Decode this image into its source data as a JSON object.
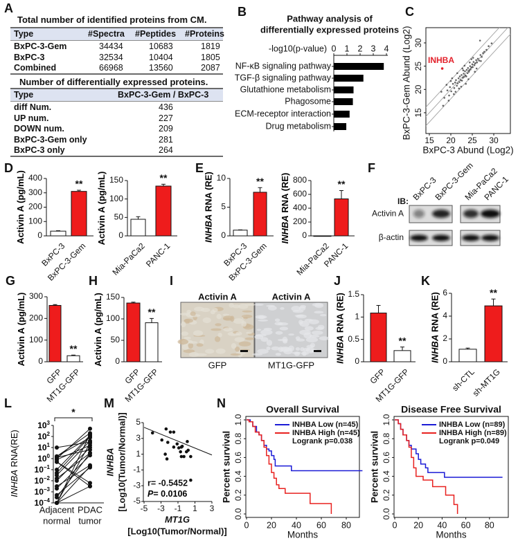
{
  "panels": {
    "A": "A",
    "B": "B",
    "C": "C",
    "D": "D",
    "E": "E",
    "F": "F",
    "G": "G",
    "H": "H",
    "I": "I",
    "J": "J",
    "K": "K",
    "L": "L",
    "M": "M",
    "N": "N"
  },
  "table_total": {
    "title": "Total number of identified proteins from CM.",
    "headers": [
      "Type",
      "#Spectra",
      "#Peptides",
      "#Proteins"
    ],
    "rows": [
      [
        "BxPC-3-Gem",
        "34434",
        "10683",
        "1819"
      ],
      [
        "BxPC-3",
        "32534",
        "10404",
        "1805"
      ],
      [
        "Combined",
        "66968",
        "13560",
        "2087"
      ]
    ]
  },
  "table_diff": {
    "title": "Number of differentially expressed proteins.",
    "headers": [
      "Type",
      "BxPC-3-Gem / BxPC-3"
    ],
    "rows": [
      [
        "diff Num.",
        "436"
      ],
      [
        "UP num.",
        "227"
      ],
      [
        "DOWN num.",
        "209"
      ],
      [
        "BxPC-3-Gem only",
        "281"
      ],
      [
        "BxPC-3 only",
        "264"
      ]
    ]
  },
  "blot": {
    "ib_label": "IB:",
    "lanes": [
      "BxPC-3",
      "BxPC-3-Gem",
      "Mia-PaCa2",
      "PANC-1"
    ],
    "rows": [
      "Activin A",
      "β-actin"
    ]
  },
  "ihc": {
    "titles": [
      "Activin A",
      "Activin A"
    ],
    "labels": [
      "GFP",
      "MT1G-GFP"
    ]
  },
  "colors": {
    "red": "#ee1c1c",
    "white": "#ffffff",
    "blue": "#1a1ad6",
    "km_red": "#e8201e",
    "inhba": "#e3202a"
  },
  "chart_data": [
    {
      "id": "B",
      "type": "bar",
      "orientation": "horizontal",
      "title_lines": [
        "Pathway analysis of",
        "differentially expressed proteins"
      ],
      "xlabel": "-log10(p-value)",
      "categories": [
        "NF-κB signaling pathway",
        "TGF-β signaling pathway",
        "Glutathione metabolism",
        "Phagosome",
        "ECM-receptor interaction",
        "Drug metabolism"
      ],
      "values": [
        3.8,
        2.25,
        1.5,
        1.45,
        1.2,
        0.95
      ],
      "xlim": [
        0,
        4
      ],
      "xticks": [
        0,
        1,
        2,
        3,
        4
      ]
    },
    {
      "id": "C",
      "type": "scatter",
      "xlabel": "BxPC-3  Abund (Log2)",
      "ylabel": "BxPC-3-Gem  Abund (Log2)",
      "xlim": [
        14.2,
        33.9
      ],
      "ylim": [
        14.5,
        33.3
      ],
      "xticks": [
        15,
        20,
        25,
        30
      ],
      "yticks": [
        15,
        20,
        25,
        30
      ],
      "reference_lines": "y = x and y = x ± 2",
      "highlight": {
        "label": "INHBA",
        "x": 18,
        "y": 24.5
      },
      "points": [
        [
          18.5,
          18.2
        ],
        [
          19.2,
          19.8
        ],
        [
          19.8,
          20.5
        ],
        [
          20.1,
          19.6
        ],
        [
          20.5,
          21.2
        ],
        [
          20.8,
          20.3
        ],
        [
          21,
          21.5
        ],
        [
          21.2,
          22
        ],
        [
          21.4,
          20.8
        ],
        [
          21.6,
          21.3
        ],
        [
          21.8,
          22.4
        ],
        [
          22,
          21.6
        ],
        [
          22.1,
          22.8
        ],
        [
          22.3,
          22
        ],
        [
          22.5,
          23.1
        ],
        [
          22.6,
          21.9
        ],
        [
          22.8,
          22.5
        ],
        [
          23,
          23.4
        ],
        [
          23.1,
          22.7
        ],
        [
          23.3,
          23.9
        ],
        [
          23.4,
          23
        ],
        [
          23.6,
          22.8
        ],
        [
          23.7,
          24.2
        ],
        [
          23.9,
          23.5
        ],
        [
          24,
          24.6
        ],
        [
          24.2,
          23.8
        ],
        [
          24.3,
          24.1
        ],
        [
          24.5,
          25
        ],
        [
          24.6,
          24.3
        ],
        [
          24.8,
          24.7
        ],
        [
          25,
          25.4
        ],
        [
          25.1,
          24.8
        ],
        [
          25.3,
          25.9
        ],
        [
          25.5,
          25.2
        ],
        [
          25.7,
          25.6
        ],
        [
          25.9,
          26.3
        ],
        [
          26.1,
          25.8
        ],
        [
          26.3,
          26.6
        ],
        [
          26.6,
          26.2
        ],
        [
          26.9,
          27.4
        ],
        [
          27.2,
          27
        ],
        [
          27.5,
          27.8
        ],
        [
          27.8,
          28.1
        ],
        [
          28.3,
          28.5
        ],
        [
          26.8,
          30.5
        ],
        [
          28.8,
          29.3
        ],
        [
          19.5,
          17.6
        ],
        [
          20.3,
          22.4
        ],
        [
          21.5,
          23.5
        ],
        [
          22.4,
          20.6
        ],
        [
          23.2,
          25.1
        ],
        [
          24.1,
          22.2
        ],
        [
          24.8,
          26.5
        ],
        [
          25.6,
          23.8
        ],
        [
          20.7,
          19
        ],
        [
          22.9,
          24.1
        ],
        [
          19,
          21
        ],
        [
          17.8,
          19.5
        ],
        [
          23.5,
          21.2
        ],
        [
          26,
          24.5
        ],
        [
          21.9,
          20.2
        ],
        [
          22.7,
          24.5
        ],
        [
          24.4,
          25.8
        ],
        [
          25.2,
          26.8
        ],
        [
          27,
          26.1
        ],
        [
          20,
          21.8
        ],
        [
          21.1,
          19.5
        ],
        [
          18.2,
          16.5
        ],
        [
          19.6,
          18.7
        ],
        [
          29.5,
          29.9
        ]
      ]
    },
    {
      "id": "D1",
      "type": "bar",
      "ylabel": "Activin A (pg/mL)",
      "categories": [
        "BxPC-3",
        "BxPC-3-Gem"
      ],
      "values": [
        33,
        310
      ],
      "errors": [
        3,
        8
      ],
      "bar_colors": [
        "#ffffff",
        "#ee1c1c"
      ],
      "significance": [
        "",
        "**"
      ],
      "ylim": [
        0,
        400
      ],
      "yticks": [
        0,
        100,
        200,
        300,
        400
      ]
    },
    {
      "id": "D2",
      "type": "bar",
      "ylabel": "Activin A (pg/mL)",
      "categories": [
        "Mia-PaCa2",
        "PANC-1"
      ],
      "values": [
        45,
        135
      ],
      "errors": [
        7,
        5
      ],
      "bar_colors": [
        "#ffffff",
        "#ee1c1c"
      ],
      "significance": [
        "",
        "**"
      ],
      "ylim": [
        0,
        150
      ],
      "yticks": [
        0,
        50,
        100,
        150
      ]
    },
    {
      "id": "E1",
      "type": "bar",
      "ylabel_italic": "INHBA",
      "ylabel": " RNA (RE)",
      "categories": [
        "BxPC-3",
        "BxPC-3-Gem"
      ],
      "values": [
        1,
        7.6
      ],
      "errors": [
        0.05,
        0.8
      ],
      "bar_colors": [
        "#ffffff",
        "#ee1c1c"
      ],
      "significance": [
        "",
        "**"
      ],
      "ylim": [
        0,
        10
      ],
      "yticks": [
        0,
        5,
        10
      ]
    },
    {
      "id": "E2",
      "type": "bar",
      "ylabel_italic": "INHBA",
      "ylabel": " RNA (RE)",
      "categories": [
        "Mia-PaCa2",
        "PANC-1"
      ],
      "values": [
        1,
        535
      ],
      "errors": [
        0,
        120
      ],
      "bar_colors": [
        "#ffffff",
        "#ee1c1c"
      ],
      "significance": [
        "",
        "**"
      ],
      "ylim": [
        0,
        800
      ],
      "yticks": [
        0,
        200,
        400,
        600,
        800
      ]
    },
    {
      "id": "G",
      "type": "bar",
      "ylabel": "Activin A (pg/mL)",
      "categories": [
        "GFP",
        "MT1G-GFP"
      ],
      "values": [
        260,
        28
      ],
      "errors": [
        4,
        3
      ],
      "bar_colors": [
        "#ee1c1c",
        "#ffffff"
      ],
      "significance": [
        "",
        "**"
      ],
      "ylim": [
        0,
        300
      ],
      "yticks": [
        0,
        100,
        200,
        300
      ]
    },
    {
      "id": "H",
      "type": "bar",
      "ylabel": "Activin A (pg/mL)",
      "categories": [
        "GFP",
        "MT1G-GFP"
      ],
      "values": [
        137,
        91
      ],
      "errors": [
        2,
        10
      ],
      "bar_colors": [
        "#ee1c1c",
        "#ffffff"
      ],
      "significance": [
        "",
        "**"
      ],
      "ylim": [
        0,
        150
      ],
      "yticks": [
        0,
        50,
        100,
        150
      ]
    },
    {
      "id": "J",
      "type": "bar",
      "ylabel_italic": "INHBA",
      "ylabel": " RNA (RE)",
      "categories": [
        "GFP",
        "MT1G-GFP"
      ],
      "values": [
        1.09,
        0.25
      ],
      "errors": [
        0.17,
        0.08
      ],
      "bar_colors": [
        "#ee1c1c",
        "#ffffff"
      ],
      "significance": [
        "",
        "**"
      ],
      "ylim": [
        0,
        1.5
      ],
      "yticks": [
        0,
        0.5,
        1,
        1.5
      ]
    },
    {
      "id": "K",
      "type": "bar",
      "ylabel_italic": "INHBA",
      "ylabel": " RNA (RE)",
      "categories": [
        "sh-CTL",
        "sh-MT1G"
      ],
      "values": [
        1.1,
        4.9
      ],
      "errors": [
        0.1,
        0.6
      ],
      "bar_colors": [
        "#ffffff",
        "#ee1c1c"
      ],
      "significance": [
        "",
        "**"
      ],
      "ylim": [
        0,
        6
      ],
      "yticks": [
        0,
        2,
        4,
        6
      ]
    },
    {
      "id": "L",
      "type": "scatter",
      "subtype": "paired",
      "ylabel_italic": "INHBA",
      "ylabel": " RNA(RE)",
      "yscale": "log",
      "ylim": [
        0.0001,
        1000
      ],
      "ytick_exponents": [
        3,
        2,
        1,
        0,
        -1,
        -2,
        -3,
        -4
      ],
      "categories": [
        [
          "Adjacent",
          "normal"
        ],
        [
          "PDAC",
          "tumor"
        ]
      ],
      "significance": "*",
      "log10_adjacent": [
        1,
        0.2,
        0.2,
        0.1,
        0,
        -0.1,
        -0.3,
        -0.3,
        -1,
        -1.3,
        -1.5,
        -1.8,
        -2,
        -2.5,
        -2.7,
        -3.3,
        -3.5,
        -4,
        -4,
        -4,
        -4
      ],
      "log10_tumor": [
        1.5,
        2.3,
        1.9,
        0.8,
        2.7,
        1.2,
        -2.2,
        -2.5,
        2.1,
        2,
        1.6,
        0.5,
        1,
        -0.6,
        0.3,
        -0.8,
        0.5,
        2.2,
        1.4,
        -0.7,
        -2.5
      ]
    },
    {
      "id": "M",
      "type": "scatter",
      "xlabel_italic": "MT1G",
      "xlabel": "[Log10(Tumor/Normal)]",
      "ylabel_italic": "INHBA",
      "ylabel": "[Log10(Tumor/Normal)]",
      "xlim": [
        -5,
        3
      ],
      "ylim": [
        -5,
        5
      ],
      "xticks": [
        -5,
        -3,
        -1,
        1,
        3
      ],
      "yticks": [
        -5,
        -3,
        -1,
        1,
        3,
        5
      ],
      "r_text": "r= -0.5452",
      "p_label": "P",
      "p_text": "= 0.0106",
      "fit_line": [
        [
          -5,
          4.4
        ],
        [
          3,
          0.9
        ]
      ],
      "points": [
        [
          -4,
          3.7
        ],
        [
          -2.9,
          2.8
        ],
        [
          -2.4,
          4.2
        ],
        [
          -2.2,
          2.5
        ],
        [
          -1.9,
          3.8
        ],
        [
          -1.5,
          3.8
        ],
        [
          -1.5,
          1.9
        ],
        [
          -1.1,
          2.3
        ],
        [
          -0.7,
          1.3
        ],
        [
          -0.6,
          1.9
        ],
        [
          -0.5,
          2
        ],
        [
          -0.3,
          0.7
        ],
        [
          0,
          1.3
        ],
        [
          0.1,
          2.6
        ],
        [
          0.2,
          1.5
        ],
        [
          0.5,
          0.7
        ],
        [
          -0.6,
          0.7
        ],
        [
          -2.5,
          1
        ],
        [
          -2.3,
          0.4
        ],
        [
          0.5,
          -2.3
        ],
        [
          -0.9,
          1.8
        ]
      ]
    },
    {
      "id": "N1",
      "type": "line",
      "subtype": "kaplan-meier",
      "title": "Overall Survival",
      "xlabel": "Months",
      "ylabel": "Percent survival",
      "xlim": [
        0,
        95
      ],
      "ylim": [
        0,
        1
      ],
      "xticks": [
        0,
        20,
        40,
        60,
        80
      ],
      "yticks": [
        "0.0",
        "0.2",
        "0.4",
        "0.6",
        "0.8",
        "1.0"
      ],
      "legend": "top-right",
      "logrank": "Logrank p=0.038",
      "series": [
        {
          "name": "INHBA Low (n=45)",
          "color": "#1a1ad6",
          "steps": [
            [
              0,
              1
            ],
            [
              3,
              0.98
            ],
            [
              5,
              0.93
            ],
            [
              8,
              0.87
            ],
            [
              10,
              0.84
            ],
            [
              12,
              0.78
            ],
            [
              14,
              0.73
            ],
            [
              16,
              0.69
            ],
            [
              18,
              0.67
            ],
            [
              20,
              0.62
            ],
            [
              22,
              0.58
            ],
            [
              23,
              0.51
            ],
            [
              36,
              0.46
            ],
            [
              93,
              0.46
            ]
          ]
        },
        {
          "name": "INHBA High (n=45)",
          "color": "#e8201e",
          "steps": [
            [
              0,
              1
            ],
            [
              2,
              0.98
            ],
            [
              5,
              0.93
            ],
            [
              7,
              0.87
            ],
            [
              10,
              0.84
            ],
            [
              12,
              0.78
            ],
            [
              14,
              0.71
            ],
            [
              16,
              0.62
            ],
            [
              18,
              0.53
            ],
            [
              20,
              0.44
            ],
            [
              22,
              0.38
            ],
            [
              24,
              0.31
            ],
            [
              26,
              0.27
            ],
            [
              31,
              0.22
            ],
            [
              51,
              0.11
            ],
            [
              68,
              0
            ]
          ]
        }
      ]
    },
    {
      "id": "N2",
      "type": "line",
      "subtype": "kaplan-meier",
      "title": "Disease Free Survival",
      "xlabel": "Months",
      "ylabel": "Percent survival",
      "xlim": [
        0,
        96
      ],
      "ylim": [
        0,
        1
      ],
      "xticks": [
        0,
        20,
        40,
        60,
        80
      ],
      "yticks": [
        "0.0",
        "0.2",
        "0.4",
        "0.6",
        "0.8",
        "1.0"
      ],
      "legend": "top-right",
      "logrank": "Logrank p=0.049",
      "series": [
        {
          "name": "INHBA Low (n=89)",
          "color": "#1a1ad6",
          "steps": [
            [
              0,
              1
            ],
            [
              3,
              0.96
            ],
            [
              5,
              0.9
            ],
            [
              7,
              0.84
            ],
            [
              10,
              0.78
            ],
            [
              12,
              0.73
            ],
            [
              14,
              0.69
            ],
            [
              18,
              0.64
            ],
            [
              20,
              0.58
            ],
            [
              22,
              0.53
            ],
            [
              26,
              0.49
            ],
            [
              28,
              0.44
            ],
            [
              42,
              0.39
            ],
            [
              91,
              0.39
            ]
          ]
        },
        {
          "name": "INHBA High (n=89)",
          "color": "#e8201e",
          "steps": [
            [
              0,
              1
            ],
            [
              3,
              0.96
            ],
            [
              5,
              0.9
            ],
            [
              7,
              0.84
            ],
            [
              10,
              0.78
            ],
            [
              12,
              0.71
            ],
            [
              14,
              0.6
            ],
            [
              16,
              0.49
            ],
            [
              18,
              0.4
            ],
            [
              24,
              0.36
            ],
            [
              32,
              0.29
            ],
            [
              43,
              0.2
            ],
            [
              50,
              0.1
            ],
            [
              53,
              0
            ]
          ]
        }
      ]
    }
  ]
}
